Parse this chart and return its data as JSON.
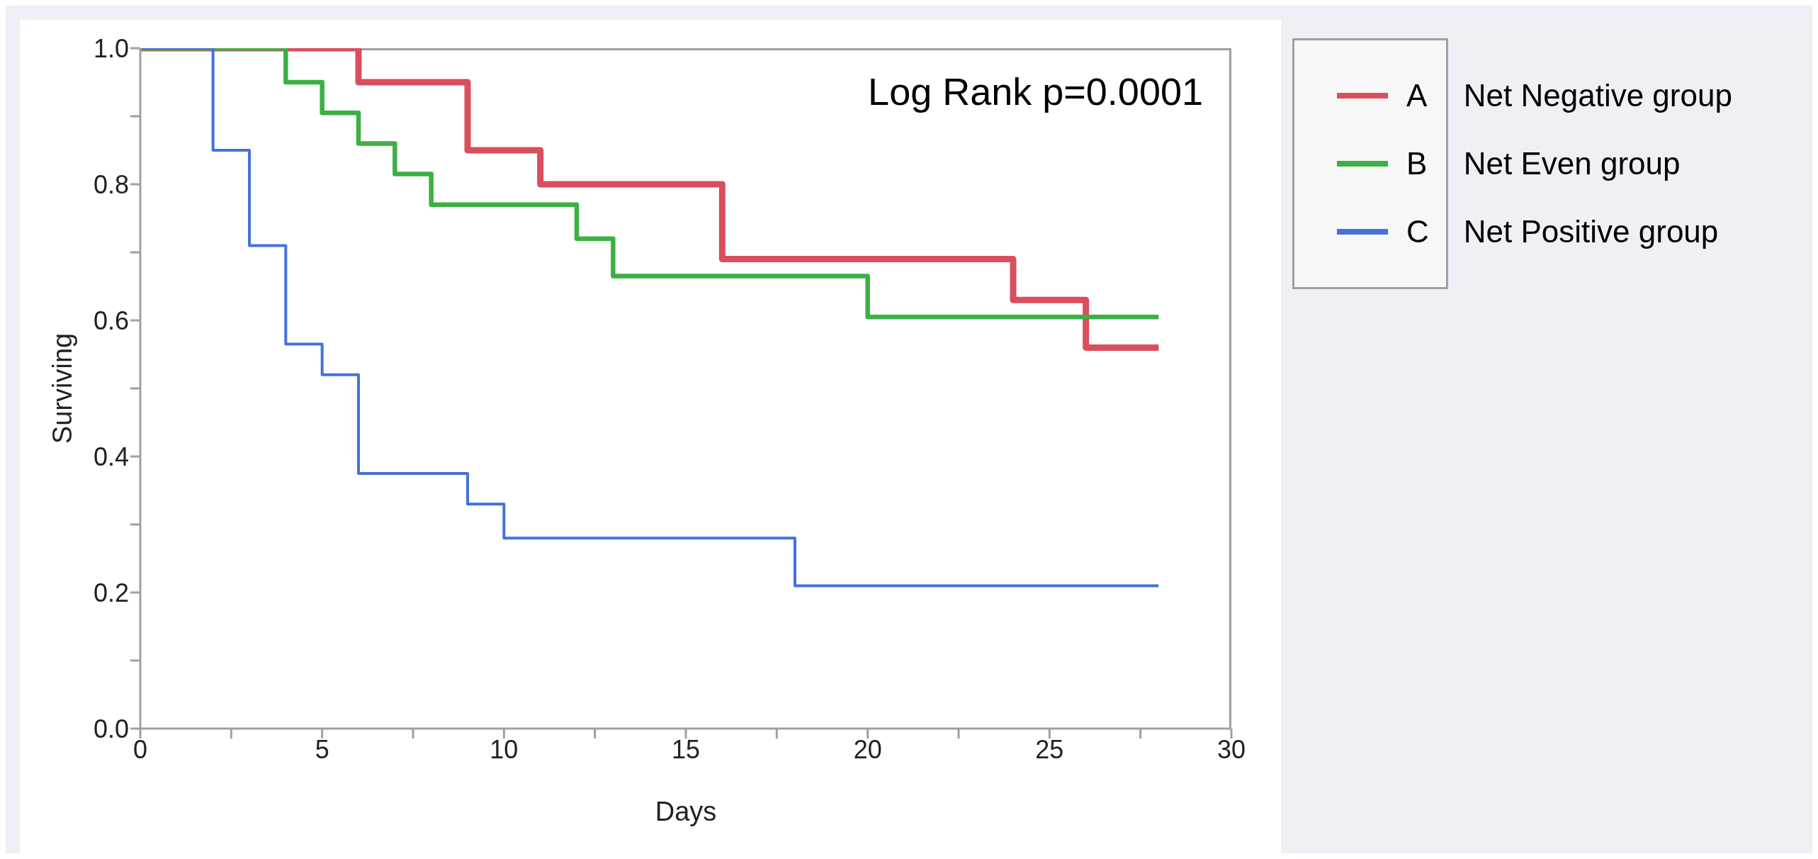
{
  "chart_data": {
    "type": "step",
    "xlabel": "Days",
    "ylabel": "Surviving",
    "xlim": [
      0,
      30
    ],
    "ylim": [
      0,
      1
    ],
    "xticks": [
      0,
      {
        "value": 2.5,
        "label": null
      },
      5,
      {
        "value": 7.5,
        "label": null
      },
      10,
      {
        "value": 12.5,
        "label": null
      },
      15,
      {
        "value": 17.5,
        "label": null
      },
      20,
      {
        "value": 22.5,
        "label": null
      },
      25,
      {
        "value": 27.5,
        "label": null
      },
      30
    ],
    "yticks": [
      {
        "value": 0,
        "label": "0.0"
      },
      {
        "value": 0.1,
        "label": null
      },
      0.2,
      {
        "value": 0.3,
        "label": null
      },
      0.4,
      {
        "value": 0.5,
        "label": null
      },
      0.6,
      {
        "value": 0.7,
        "label": null
      },
      0.8,
      {
        "value": 0.9,
        "label": null
      },
      {
        "value": 1,
        "label": "1.0"
      }
    ],
    "grid": false,
    "legend": "right",
    "marker": "none",
    "annotations": [
      "Log Rank p=0.0001",
      "Net Negative group",
      "Net Even group",
      "Net Positive group"
    ],
    "series": [
      {
        "name": "A",
        "color": "#d94f5c",
        "x": [
          0,
          6,
          9,
          11,
          16,
          24,
          26,
          28
        ],
        "values": [
          1,
          0.95,
          0.85,
          0.8,
          0.69,
          0.63,
          0.56,
          0.56
        ]
      },
      {
        "name": "B",
        "color": "#3cb043",
        "x": [
          0,
          4,
          5,
          6,
          7,
          8,
          12,
          13,
          20,
          28
        ],
        "values": [
          1,
          0.95,
          0.905,
          0.86,
          0.815,
          0.77,
          0.72,
          0.665,
          0.605,
          0.605
        ]
      },
      {
        "name": "C",
        "color": "#4472d9",
        "x": [
          0,
          2,
          3,
          4,
          5,
          6,
          9,
          10,
          18,
          28
        ],
        "values": [
          1,
          0.85,
          0.71,
          0.565,
          0.52,
          0.375,
          0.33,
          0.28,
          0.21,
          0.21
        ]
      }
    ]
  }
}
